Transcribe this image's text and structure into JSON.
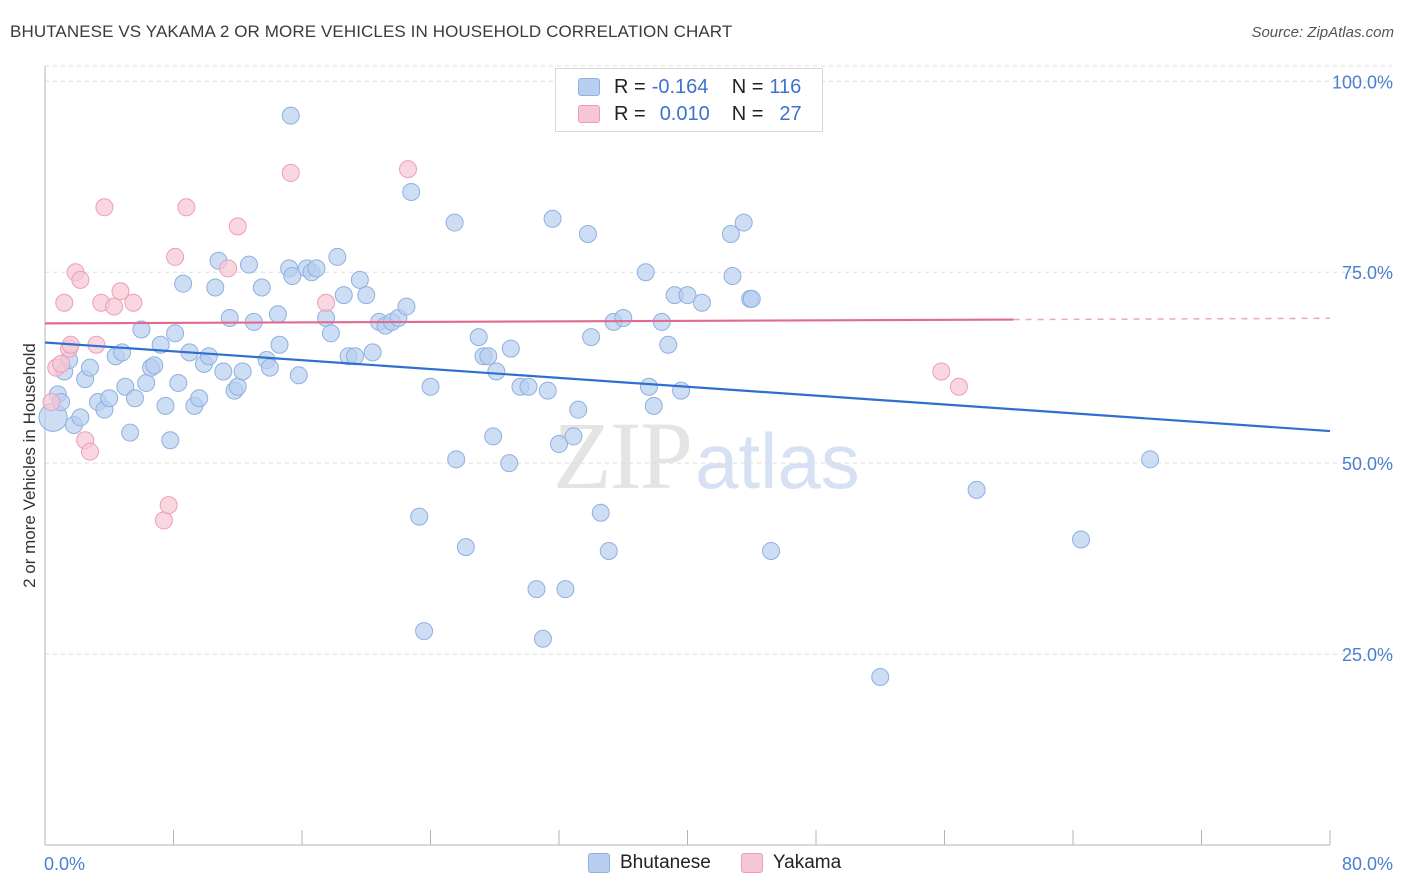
{
  "title": "BHUTANESE VS YAKAMA 2 OR MORE VEHICLES IN HOUSEHOLD CORRELATION CHART",
  "source": "Source: ZipAtlas.com",
  "watermark": {
    "zip": "ZIP",
    "atlas": "atlas"
  },
  "legend": {
    "r_label": "R =",
    "n_label": "N =",
    "rows": [
      {
        "name": "Bhutanese",
        "r": "-0.164",
        "n": "116"
      },
      {
        "name": "Yakama",
        "r": "0.010",
        "n": "27"
      }
    ]
  },
  "colors": {
    "bhutanese_fill": "#b8cff0",
    "bhutanese_stroke": "#8fb0e0",
    "bhutanese_line": "#2f6fd0",
    "yakama_fill": "#f7c6d4",
    "yakama_stroke": "#ef9db6",
    "yakama_line": "#e06a92",
    "tick": "#4a7fd0"
  },
  "chart_data": {
    "type": "scatter",
    "title": "BHUTANESE VS YAKAMA 2 OR MORE VEHICLES IN HOUSEHOLD CORRELATION CHART",
    "xlabel": "",
    "ylabel": "2 or more Vehicles in Household",
    "xlim": [
      0,
      80
    ],
    "ylim": [
      0,
      102
    ],
    "x_tick_labels": [
      "0.0%",
      "80.0%"
    ],
    "y_ticks": [
      25,
      50,
      75,
      100
    ],
    "y_tick_labels": [
      "25.0%",
      "50.0%",
      "75.0%",
      "100.0%"
    ],
    "grid": true,
    "series": [
      {
        "name": "Bhutanese",
        "trend": {
          "x": [
            0,
            80
          ],
          "y": [
            65.8,
            54.2
          ],
          "extends_to": 80
        },
        "points": [
          [
            0.5,
            56
          ],
          [
            0.8,
            59
          ],
          [
            1.2,
            62
          ],
          [
            1.5,
            63.5
          ],
          [
            1.8,
            55
          ],
          [
            2.2,
            56
          ],
          [
            2.5,
            61
          ],
          [
            2.8,
            62.5
          ],
          [
            3.3,
            58
          ],
          [
            3.7,
            57
          ],
          [
            4.0,
            58.5
          ],
          [
            4.4,
            64
          ],
          [
            4.8,
            64.5
          ],
          [
            5.0,
            60
          ],
          [
            5.3,
            54
          ],
          [
            5.6,
            58.5
          ],
          [
            6.0,
            67.5
          ],
          [
            6.3,
            60.5
          ],
          [
            6.6,
            62.5
          ],
          [
            6.8,
            62.8
          ],
          [
            7.2,
            65.5
          ],
          [
            7.5,
            57.5
          ],
          [
            7.8,
            53
          ],
          [
            8.1,
            67
          ],
          [
            8.3,
            60.5
          ],
          [
            8.6,
            73.5
          ],
          [
            9.3,
            57.5
          ],
          [
            9.6,
            58.5
          ],
          [
            9.9,
            63
          ],
          [
            10.2,
            64
          ],
          [
            10.6,
            73
          ],
          [
            10.8,
            76.5
          ],
          [
            11.1,
            62
          ],
          [
            11.5,
            69
          ],
          [
            11.8,
            59.5
          ],
          [
            12.0,
            60
          ],
          [
            12.3,
            62
          ],
          [
            12.7,
            76
          ],
          [
            13.0,
            68.5
          ],
          [
            13.5,
            73
          ],
          [
            13.8,
            63.5
          ],
          [
            14.0,
            62.5
          ],
          [
            14.5,
            69.5
          ],
          [
            15.2,
            75.5
          ],
          [
            15.4,
            74.5
          ],
          [
            15.8,
            61.5
          ],
          [
            16.3,
            75.5
          ],
          [
            16.6,
            75
          ],
          [
            16.9,
            75.5
          ],
          [
            17.5,
            69
          ],
          [
            17.8,
            67
          ],
          [
            18.2,
            77
          ],
          [
            18.6,
            72
          ],
          [
            18.9,
            64
          ],
          [
            19.3,
            64
          ],
          [
            19.6,
            74
          ],
          [
            20.0,
            72
          ],
          [
            20.4,
            64.5
          ],
          [
            20.8,
            68.5
          ],
          [
            21.2,
            68
          ],
          [
            21.6,
            68.5
          ],
          [
            22.0,
            69
          ],
          [
            22.5,
            70.5
          ],
          [
            22.8,
            85.5
          ],
          [
            23.3,
            43
          ],
          [
            23.6,
            28
          ],
          [
            24.0,
            60
          ],
          [
            25.5,
            81.5
          ],
          [
            25.6,
            50.5
          ],
          [
            26.2,
            39
          ],
          [
            27.0,
            66.5
          ],
          [
            27.3,
            64
          ],
          [
            27.6,
            64
          ],
          [
            28.1,
            62
          ],
          [
            28.9,
            50
          ],
          [
            29.0,
            65
          ],
          [
            29.6,
            60
          ],
          [
            30.1,
            60
          ],
          [
            30.6,
            33.5
          ],
          [
            31.0,
            27
          ],
          [
            31.3,
            59.5
          ],
          [
            31.6,
            82
          ],
          [
            32.0,
            52.5
          ],
          [
            32.4,
            33.5
          ],
          [
            32.9,
            53.5
          ],
          [
            33.2,
            57
          ],
          [
            34.0,
            66.5
          ],
          [
            34.6,
            43.5
          ],
          [
            35.1,
            38.5
          ],
          [
            35.4,
            68.5
          ],
          [
            36.0,
            69
          ],
          [
            37.4,
            75
          ],
          [
            37.6,
            60
          ],
          [
            37.9,
            57.5
          ],
          [
            38.4,
            68.5
          ],
          [
            38.8,
            65.5
          ],
          [
            39.2,
            72
          ],
          [
            39.6,
            59.5
          ],
          [
            40.0,
            72
          ],
          [
            40.9,
            71
          ],
          [
            42.8,
            74.5
          ],
          [
            43.5,
            81.5
          ],
          [
            43.9,
            71.5
          ],
          [
            44.0,
            71.5
          ],
          [
            45.2,
            38.5
          ],
          [
            52.0,
            22
          ],
          [
            58.0,
            46.5
          ],
          [
            64.5,
            40
          ],
          [
            68.8,
            50.5
          ],
          [
            15.3,
            95.5
          ],
          [
            42.7,
            80
          ],
          [
            33.8,
            80
          ],
          [
            1.0,
            58
          ],
          [
            9.0,
            64.5
          ],
          [
            14.6,
            65.5
          ],
          [
            27.9,
            53.5
          ]
        ]
      },
      {
        "name": "Yakama",
        "trend": {
          "x": [
            0,
            60.3
          ],
          "y": [
            68.3,
            68.8
          ],
          "extends_to": 80
        },
        "points": [
          [
            0.4,
            58
          ],
          [
            0.7,
            62.5
          ],
          [
            1.0,
            63
          ],
          [
            1.2,
            71
          ],
          [
            1.5,
            65
          ],
          [
            1.6,
            65.5
          ],
          [
            1.9,
            75
          ],
          [
            2.2,
            74
          ],
          [
            2.5,
            53
          ],
          [
            2.8,
            51.5
          ],
          [
            3.2,
            65.5
          ],
          [
            3.7,
            83.5
          ],
          [
            3.5,
            71
          ],
          [
            4.3,
            70.5
          ],
          [
            4.7,
            72.5
          ],
          [
            5.5,
            71
          ],
          [
            7.4,
            42.5
          ],
          [
            7.7,
            44.5
          ],
          [
            8.1,
            77
          ],
          [
            8.8,
            83.5
          ],
          [
            11.4,
            75.5
          ],
          [
            12.0,
            81
          ],
          [
            15.3,
            88
          ],
          [
            17.5,
            71
          ],
          [
            22.6,
            88.5
          ],
          [
            55.8,
            62
          ],
          [
            56.9,
            60
          ]
        ]
      }
    ]
  }
}
